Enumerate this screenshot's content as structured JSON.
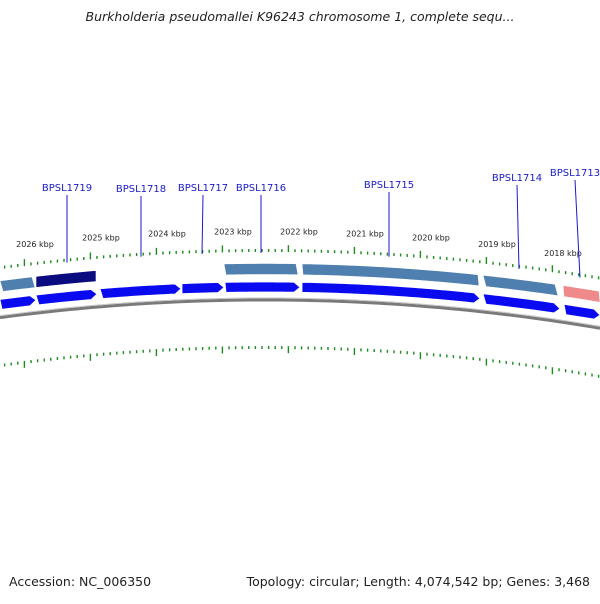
{
  "title": "Burkholderia pseudomallei K96243 chromosome 1, complete sequ...",
  "footer": {
    "accession_label": "Accession:",
    "accession": "NC_006350",
    "topology_label": "Topology:",
    "topology": "circular",
    "length_label": "Length:",
    "length": "4,074,542 bp",
    "genes_label": "Genes:",
    "genes": "3,468"
  },
  "kbp_labels": [
    "2026 kbp",
    "2025 kbp",
    "2024 kbp",
    "2023 kbp",
    "2022 kbp",
    "2021 kbp",
    "2020 kbp",
    "2019 kbp",
    "2018 kbp"
  ],
  "gene_labels": [
    "BPSL1719",
    "BPSL1718",
    "BPSL1717",
    "BPSL1716",
    "BPSL1715",
    "BPSL1714",
    "BPSL1713"
  ],
  "colors": {
    "tick": "#1f8a1f",
    "gene_label": "#1a1acc",
    "arrow_fill": "#0a0af0",
    "feature_blue": "#4f7fae",
    "feature_dark": "#0b0b80",
    "feature_pink": "#f08a8a",
    "backbone": "#7a7a7a"
  }
}
